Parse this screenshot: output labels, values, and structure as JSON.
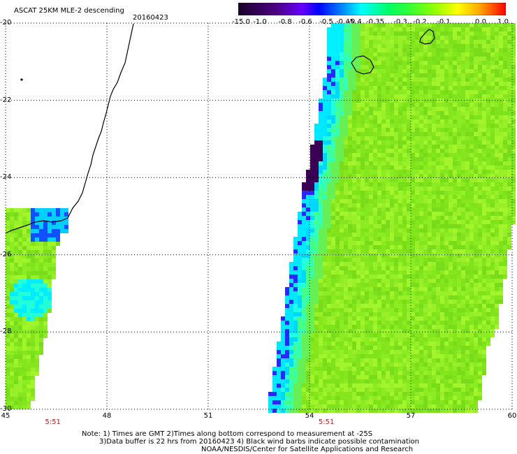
{
  "title": "ASCAT 25KM MLE-2 descending",
  "date": "20160423",
  "colorbar": {
    "labels": [
      "-15.0",
      "-1.0",
      "-0.8",
      "-0.6",
      "-0.5",
      "-0.45",
      "-0.4",
      "-0.35",
      "-0.3",
      "-0.2",
      "-0.1",
      "0.0",
      "1.0"
    ],
    "colors": [
      "#000000",
      "#4b0082",
      "#8a00ff",
      "#0000ff",
      "#00aaff",
      "#00ffff",
      "#33ff99",
      "#66ff33",
      "#99ff33",
      "#ccff00",
      "#ffcc00",
      "#ff6600",
      "#ff0000"
    ]
  },
  "axes": {
    "lat_labels": [
      "-20",
      "-22",
      "-24",
      "-26",
      "-28",
      "-30"
    ],
    "lon_labels": [
      "45",
      "48",
      "51",
      "54",
      "57",
      "60"
    ],
    "lat_range": [
      -30,
      -20
    ],
    "lon_range": [
      45,
      60
    ]
  },
  "swath_times": [
    {
      "time": "5:51",
      "lon": 46.4
    },
    {
      "time": "5:51",
      "lon": 54.5
    }
  ],
  "notes": {
    "line1": "Note: 1) Times are GMT 2)Times along bottom correspond to measurement at -25S",
    "line2": "3)Data buffer is 22 hrs from 20160423 4) Black wind barbs indicate possible contamination",
    "line3": "NOAA/NESDIS/Center for Satellite Applications and Research"
  },
  "colors": {
    "background": "#ffffff",
    "land_outline": "#000000",
    "dominant_field": "#88ee22",
    "coastal_low": "#00e5ff",
    "extreme_low": "#3a0055"
  }
}
